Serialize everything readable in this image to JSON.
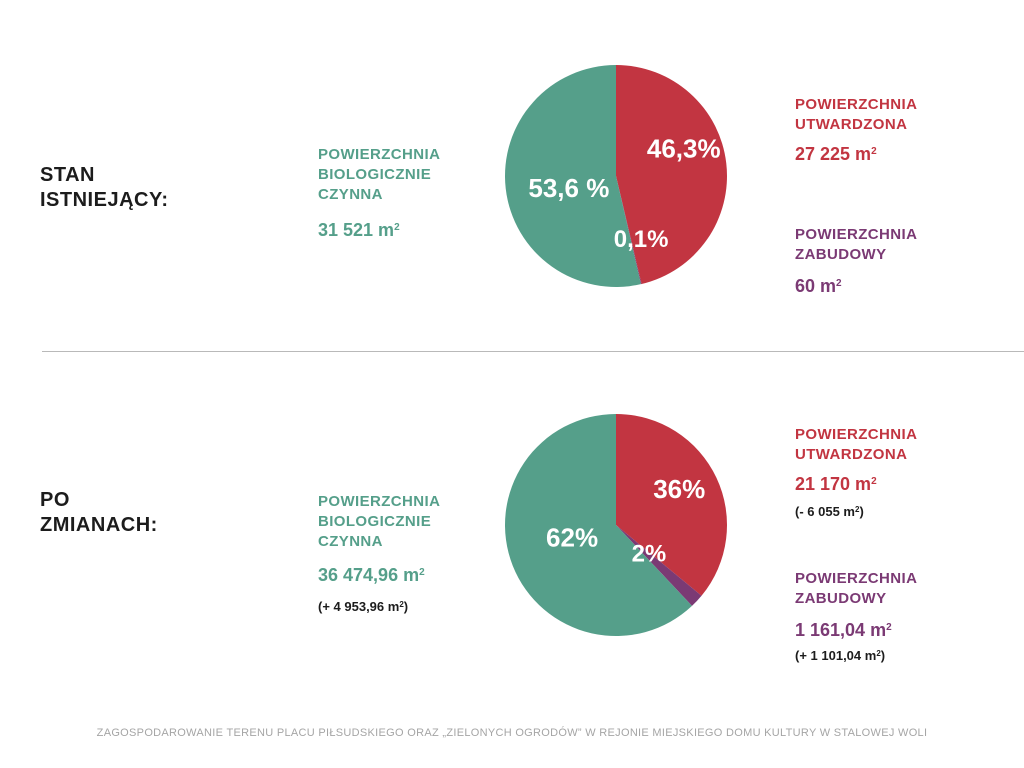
{
  "colors": {
    "green": "#559f8a",
    "red": "#c23541",
    "purple": "#7b3a74"
  },
  "sections": [
    {
      "title_line1": "STAN",
      "title_line2": "ISTNIEJĄCY:",
      "bio": {
        "label_lines": [
          "POWIERZCHNIA",
          "BIOLOGICZNIE",
          "CZYNNA"
        ],
        "value": "31 521 m",
        "delta": ""
      },
      "paved": {
        "label_lines": [
          "POWIERZCHNIA",
          "UTWARDZONA"
        ],
        "value": "27 225 m",
        "delta": ""
      },
      "built": {
        "label_lines": [
          "POWIERZCHNIA",
          "ZABUDOWY"
        ],
        "value": "60 m",
        "delta": ""
      }
    },
    {
      "title_line1": "PO",
      "title_line2": "ZMIANACH:",
      "bio": {
        "label_lines": [
          "POWIERZCHNIA",
          "BIOLOGICZNIE",
          "CZYNNA"
        ],
        "value": "36 474,96 m",
        "delta": "(+ 4 953,96 m"
      },
      "paved": {
        "label_lines": [
          "POWIERZCHNIA",
          "UTWARDZONA"
        ],
        "value": "21 170 m",
        "delta": "(- 6 055 m"
      },
      "built": {
        "label_lines": [
          "POWIERZCHNIA",
          "ZABUDOWY"
        ],
        "value": "1 161,04 m",
        "delta": "(+ 1 101,04 m"
      }
    }
  ],
  "unit_superscript": "2",
  "delta_suffix": ")",
  "chart_data": [
    {
      "type": "pie",
      "categories": [
        "POWIERZCHNIA UTWARDZONA",
        "POWIERZCHNIA ZABUDOWY",
        "POWIERZCHNIA BIOLOGICZNIE CZYNNA"
      ],
      "values": [
        46.3,
        0.1,
        53.6
      ],
      "labels": [
        "46,3%",
        "0,1%",
        "53,6 %"
      ],
      "colors": [
        "#c23541",
        "#7b3a74",
        "#559f8a"
      ],
      "start": "top, clockwise"
    },
    {
      "type": "pie",
      "categories": [
        "POWIERZCHNIA UTWARDZONA",
        "POWIERZCHNIA ZABUDOWY",
        "POWIERZCHNIA BIOLOGICZNIE CZYNNA"
      ],
      "values": [
        36,
        2,
        62
      ],
      "labels": [
        "36%",
        "2%",
        "62%"
      ],
      "colors": [
        "#c23541",
        "#7b3a74",
        "#559f8a"
      ],
      "start": "top, clockwise"
    }
  ],
  "footer": "ZAGOSPODAROWANIE TERENU PLACU PIŁSUDSKIEGO ORAZ „ZIELONYCH OGRODÓW” W REJONIE MIEJSKIEGO DOMU KULTURY W STALOWEJ WOLI"
}
